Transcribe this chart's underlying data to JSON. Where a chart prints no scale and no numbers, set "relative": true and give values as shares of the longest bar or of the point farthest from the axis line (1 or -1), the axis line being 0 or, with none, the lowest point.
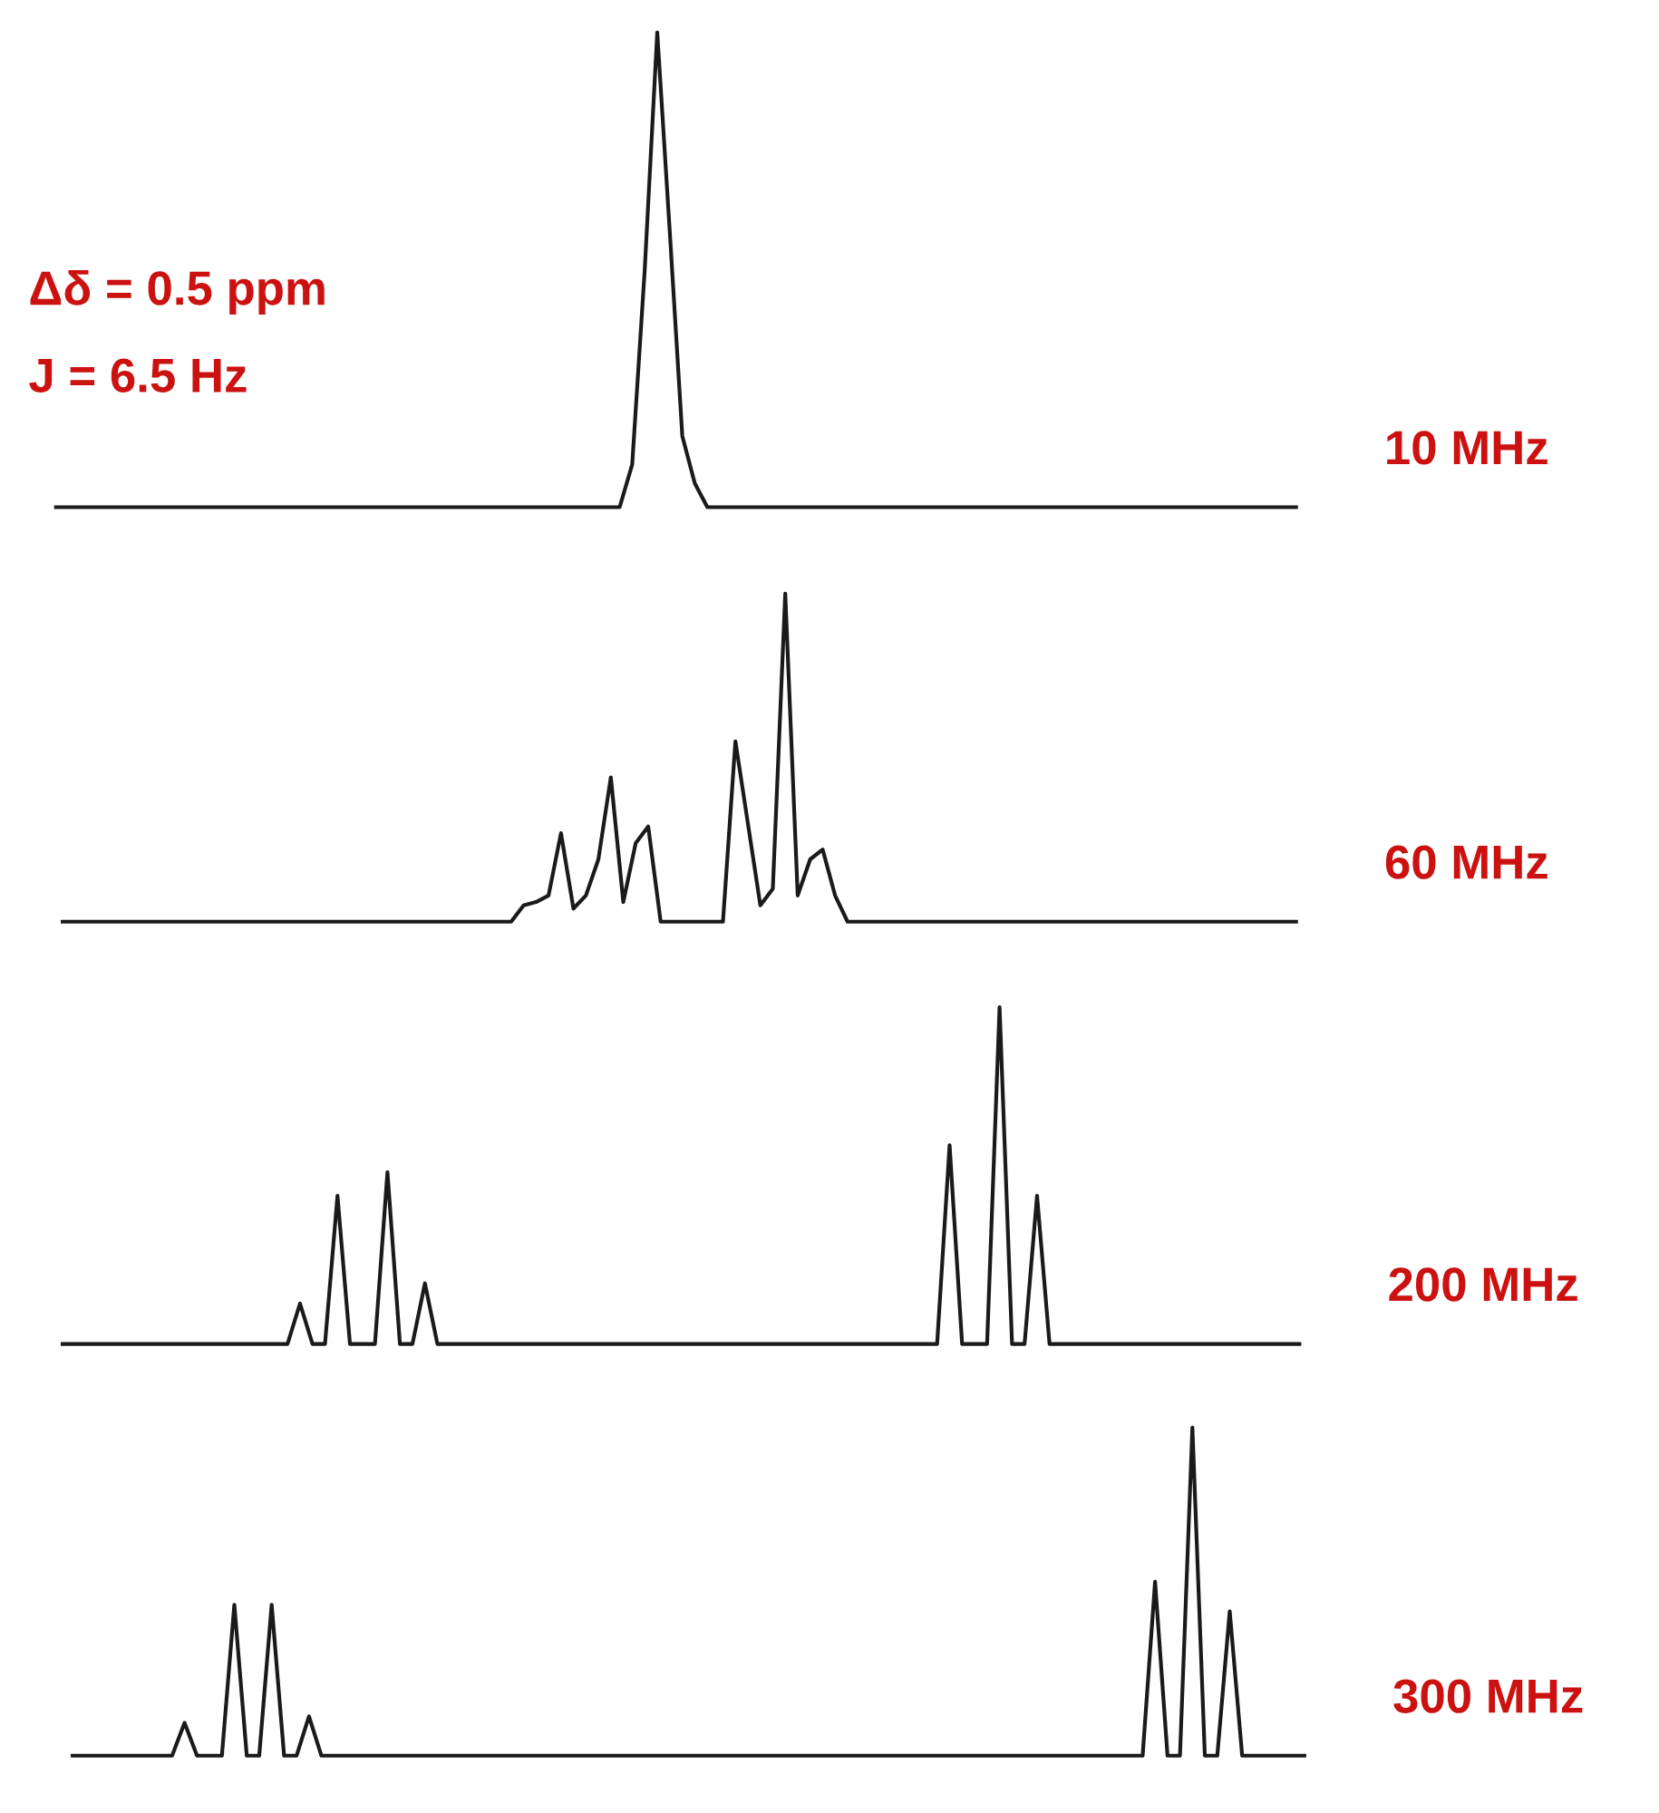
{
  "chart_data": [
    {
      "type": "line",
      "relative": true,
      "annotations": [
        "Δδ = 0.5 ppm",
        "J = 6.5 Hz"
      ],
      "categories": [
        null,
        null,
        null,
        null,
        null,
        null,
        null,
        null,
        null,
        null,
        null,
        null,
        null,
        null,
        null,
        null,
        null,
        null,
        null,
        null,
        null,
        null,
        null,
        null,
        null,
        null,
        null,
        null,
        null,
        null,
        null,
        null,
        null,
        null,
        null,
        null,
        null,
        null,
        null,
        null,
        null,
        null,
        null,
        null,
        null,
        null,
        null,
        null,
        null,
        null,
        null,
        null,
        null,
        null,
        null,
        null,
        null,
        null,
        null,
        null,
        null,
        null,
        null,
        null,
        null,
        null,
        null,
        null,
        null,
        null,
        null,
        null,
        null,
        null,
        null,
        null,
        null,
        null,
        null,
        null,
        null,
        null,
        null,
        null,
        null,
        null,
        null,
        null,
        null,
        null,
        null,
        null,
        null,
        null,
        null,
        null,
        null,
        null,
        null,
        null
      ],
      "series": [
        {
          "name": "10 MHz",
          "color": "#1a1a1a",
          "values": [
            0,
            0,
            0,
            0,
            0,
            0,
            0,
            0,
            0,
            0,
            0,
            0,
            0,
            0,
            0,
            0,
            0,
            0,
            0,
            0,
            0,
            0,
            0,
            0,
            0,
            0,
            0,
            0,
            0,
            0,
            0,
            0,
            0,
            0,
            0,
            0,
            0,
            0,
            0,
            0,
            0,
            0,
            0,
            0,
            0,
            0,
            0.09,
            0.5,
            1,
            0.58,
            0.15,
            0.05,
            0,
            0,
            0,
            0,
            0,
            0,
            0,
            0,
            0,
            0,
            0,
            0,
            0,
            0,
            0,
            0,
            0,
            0,
            0,
            0,
            0,
            0,
            0,
            0,
            0,
            0,
            0,
            0,
            0,
            0,
            0,
            0,
            0,
            0,
            0,
            0,
            0,
            0,
            0,
            0,
            0,
            0,
            0,
            0,
            0,
            0,
            0,
            0
          ]
        }
      ]
    },
    {
      "type": "line",
      "relative": true,
      "categories": [
        null,
        null,
        null,
        null,
        null,
        null,
        null,
        null,
        null,
        null,
        null,
        null,
        null,
        null,
        null,
        null,
        null,
        null,
        null,
        null,
        null,
        null,
        null,
        null,
        null,
        null,
        null,
        null,
        null,
        null,
        null,
        null,
        null,
        null,
        null,
        null,
        null,
        null,
        null,
        null,
        null,
        null,
        null,
        null,
        null,
        null,
        null,
        null,
        null,
        null,
        null,
        null,
        null,
        null,
        null,
        null,
        null,
        null,
        null,
        null,
        null,
        null,
        null,
        null,
        null,
        null,
        null,
        null,
        null,
        null,
        null,
        null,
        null,
        null,
        null,
        null,
        null,
        null,
        null,
        null,
        null,
        null,
        null,
        null,
        null,
        null,
        null,
        null,
        null,
        null,
        null,
        null,
        null,
        null,
        null,
        null,
        null,
        null,
        null,
        null
      ],
      "series": [
        {
          "name": "60 MHz",
          "color": "#1a1a1a",
          "values": [
            0,
            0,
            0,
            0,
            0,
            0,
            0,
            0,
            0,
            0,
            0,
            0,
            0,
            0,
            0,
            0,
            0,
            0,
            0,
            0,
            0,
            0,
            0,
            0,
            0,
            0,
            0,
            0,
            0,
            0,
            0,
            0,
            0,
            0,
            0,
            0,
            0,
            0.05,
            0.06,
            0.08,
            0.27,
            0.04,
            0.08,
            0.19,
            0.44,
            0.06,
            0.24,
            0.29,
            0,
            0,
            0,
            0,
            0,
            0,
            0.55,
            0.3,
            0.05,
            0.1,
            1,
            0.08,
            0.19,
            0.22,
            0.08,
            0,
            0,
            0,
            0,
            0,
            0,
            0,
            0,
            0,
            0,
            0,
            0,
            0,
            0,
            0,
            0,
            0,
            0,
            0,
            0,
            0,
            0,
            0,
            0,
            0,
            0,
            0,
            0,
            0,
            0,
            0,
            0,
            0,
            0,
            0,
            0,
            0
          ]
        }
      ]
    },
    {
      "type": "line",
      "relative": true,
      "categories": [
        null,
        null,
        null,
        null,
        null,
        null,
        null,
        null,
        null,
        null,
        null,
        null,
        null,
        null,
        null,
        null,
        null,
        null,
        null,
        null,
        null,
        null,
        null,
        null,
        null,
        null,
        null,
        null,
        null,
        null,
        null,
        null,
        null,
        null,
        null,
        null,
        null,
        null,
        null,
        null,
        null,
        null,
        null,
        null,
        null,
        null,
        null,
        null,
        null,
        null,
        null,
        null,
        null,
        null,
        null,
        null,
        null,
        null,
        null,
        null,
        null,
        null,
        null,
        null,
        null,
        null,
        null,
        null,
        null,
        null,
        null,
        null,
        null,
        null,
        null,
        null,
        null,
        null,
        null,
        null,
        null,
        null,
        null,
        null,
        null,
        null,
        null,
        null,
        null,
        null,
        null,
        null,
        null,
        null,
        null,
        null,
        null,
        null,
        null,
        null
      ],
      "series": [
        {
          "name": "200 MHz",
          "color": "#1a1a1a",
          "values": [
            0,
            0,
            0,
            0,
            0,
            0,
            0,
            0,
            0,
            0,
            0,
            0,
            0,
            0,
            0,
            0,
            0,
            0,
            0,
            0.12,
            0,
            0,
            0.44,
            0,
            0,
            0,
            0.51,
            0,
            0,
            0.18,
            0,
            0,
            0,
            0,
            0,
            0,
            0,
            0,
            0,
            0,
            0,
            0,
            0,
            0,
            0,
            0,
            0,
            0,
            0,
            0,
            0,
            0,
            0,
            0,
            0,
            0,
            0,
            0,
            0,
            0,
            0,
            0,
            0,
            0,
            0,
            0,
            0,
            0,
            0,
            0,
            0,
            0.59,
            0,
            0,
            0,
            1,
            0,
            0,
            0.44,
            0,
            0,
            0,
            0,
            0,
            0,
            0,
            0,
            0,
            0,
            0,
            0,
            0,
            0,
            0,
            0,
            0,
            0,
            0,
            0,
            0
          ]
        }
      ]
    },
    {
      "type": "line",
      "relative": true,
      "categories": [
        null,
        null,
        null,
        null,
        null,
        null,
        null,
        null,
        null,
        null,
        null,
        null,
        null,
        null,
        null,
        null,
        null,
        null,
        null,
        null,
        null,
        null,
        null,
        null,
        null,
        null,
        null,
        null,
        null,
        null,
        null,
        null,
        null,
        null,
        null,
        null,
        null,
        null,
        null,
        null,
        null,
        null,
        null,
        null,
        null,
        null,
        null,
        null,
        null,
        null,
        null,
        null,
        null,
        null,
        null,
        null,
        null,
        null,
        null,
        null,
        null,
        null,
        null,
        null,
        null,
        null,
        null,
        null,
        null,
        null,
        null,
        null,
        null,
        null,
        null,
        null,
        null,
        null,
        null,
        null,
        null,
        null,
        null,
        null,
        null,
        null,
        null,
        null,
        null,
        null,
        null,
        null,
        null,
        null,
        null,
        null,
        null,
        null,
        null,
        null
      ],
      "series": [
        {
          "name": "300 MHz",
          "color": "#1a1a1a",
          "values": [
            0,
            0,
            0,
            0,
            0,
            0,
            0,
            0,
            0,
            0.1,
            0,
            0,
            0,
            0.46,
            0,
            0,
            0.46,
            0,
            0,
            0.12,
            0,
            0,
            0,
            0,
            0,
            0,
            0,
            0,
            0,
            0,
            0,
            0,
            0,
            0,
            0,
            0,
            0,
            0,
            0,
            0,
            0,
            0,
            0,
            0,
            0,
            0,
            0,
            0,
            0,
            0,
            0,
            0,
            0,
            0,
            0,
            0,
            0,
            0,
            0,
            0,
            0,
            0,
            0,
            0,
            0,
            0,
            0,
            0,
            0,
            0,
            0,
            0,
            0,
            0,
            0,
            0,
            0,
            0,
            0,
            0,
            0,
            0,
            0,
            0,
            0,
            0,
            0,
            0.53,
            0,
            0,
            1,
            0,
            0,
            0.44,
            0,
            0,
            0,
            0,
            0,
            0
          ]
        }
      ]
    }
  ]
}
